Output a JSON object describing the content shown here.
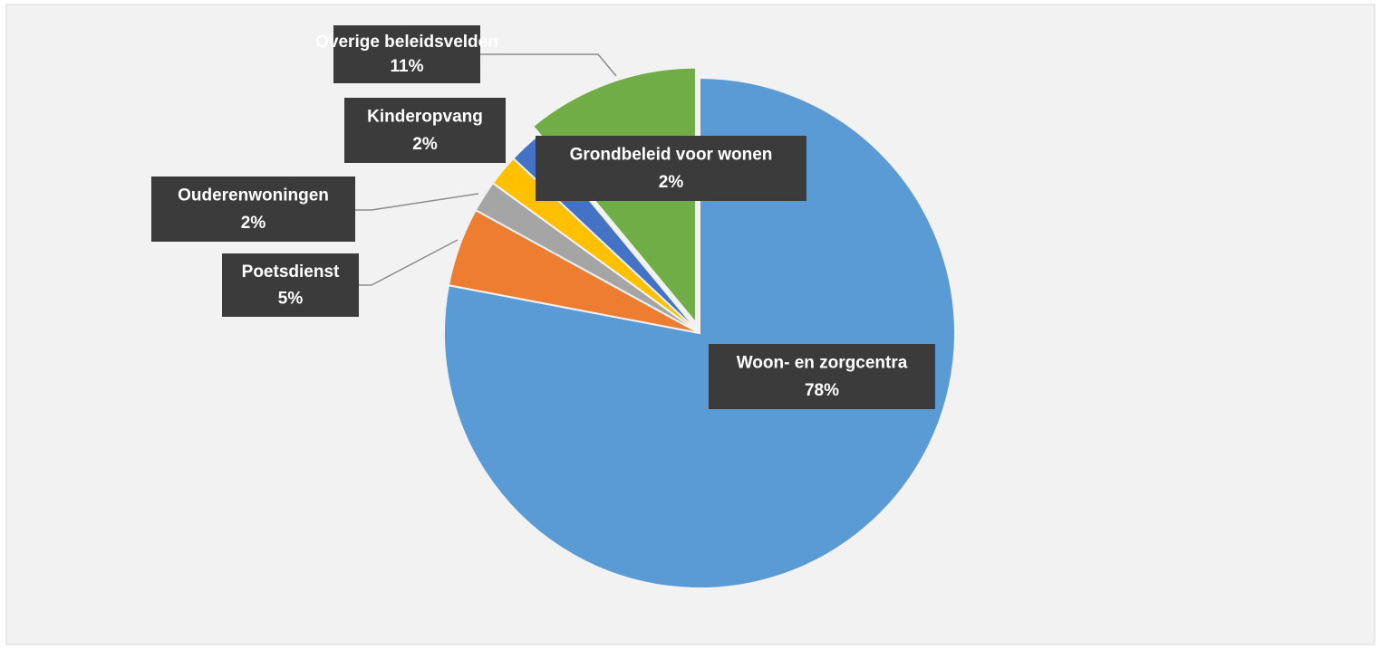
{
  "chart_data": {
    "type": "pie",
    "categories": [
      "Woon- en zorgcentra",
      "Poetsdienst",
      "Ouderenwoningen",
      "Kinderopvang",
      "Grondbeleid voor wonen",
      "Overige beleidsvelden"
    ],
    "values": [
      78,
      5,
      2,
      2,
      2,
      11
    ],
    "value_labels": [
      "78%",
      "5%",
      "2%",
      "2%",
      "2%",
      "11%"
    ],
    "colors": [
      "#5b9bd5",
      "#ed7d31",
      "#a5a5a5",
      "#ffc000",
      "#4472c4",
      "#70ad47"
    ]
  }
}
